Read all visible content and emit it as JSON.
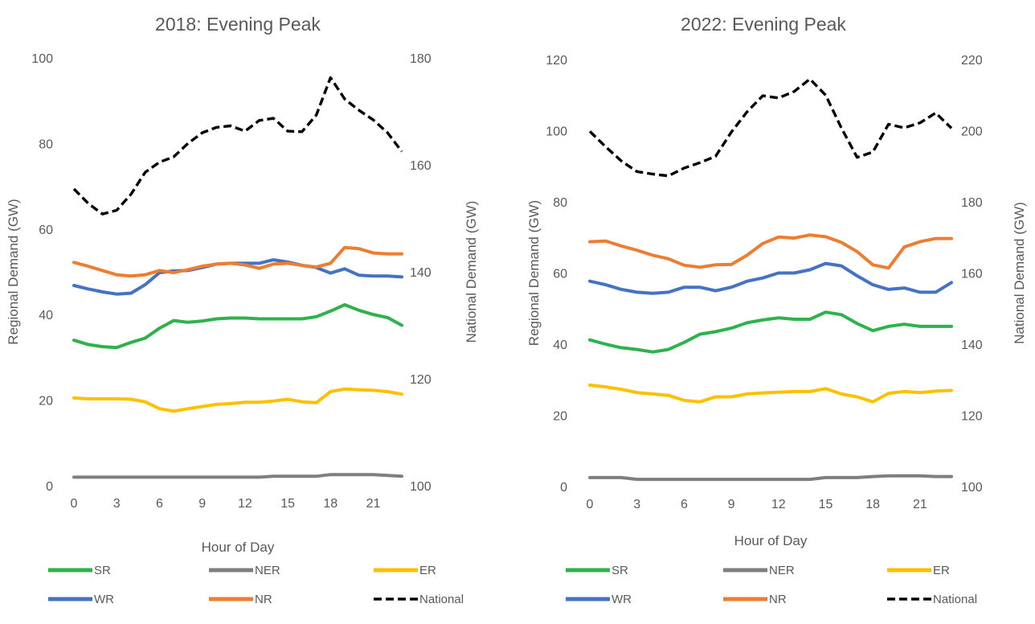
{
  "chart_data": [
    {
      "type": "line",
      "title": "2018: Evening  Peak",
      "xlabel": "Hour of Day",
      "ylabel": "Regional Demand (GW)",
      "y2label": "National Demand (GW)",
      "x": [
        0,
        1,
        2,
        3,
        4,
        5,
        6,
        7,
        8,
        9,
        10,
        11,
        12,
        13,
        14,
        15,
        16,
        17,
        18,
        19,
        20,
        21,
        22,
        23
      ],
      "xticks": [
        "0",
        "3",
        "6",
        "9",
        "12",
        "15",
        "18",
        "21"
      ],
      "ylim": [
        0,
        100
      ],
      "yticks": [
        "0",
        "20",
        "40",
        "60",
        "80",
        "100"
      ],
      "y2lim": [
        100,
        180
      ],
      "y2ticks": [
        "100",
        "120",
        "140",
        "160",
        "180"
      ],
      "legend_position": "bottom",
      "series": [
        {
          "name": "SR",
          "axis": "left",
          "color": "#2EB24B",
          "dashed": false,
          "values": [
            34,
            33,
            32.5,
            32.3,
            33.5,
            34.5,
            36.8,
            38.6,
            38.2,
            38.5,
            39,
            39.2,
            39.2,
            39,
            39,
            39,
            39,
            39.5,
            40.8,
            42.3,
            41,
            40,
            39.3,
            37.5
          ]
        },
        {
          "name": "NER",
          "axis": "left",
          "color": "#7F7F7F",
          "dashed": false,
          "values": [
            2,
            2,
            2,
            2,
            2,
            2,
            2,
            2,
            2,
            2,
            2,
            2,
            2,
            2,
            2.2,
            2.2,
            2.2,
            2.2,
            2.6,
            2.6,
            2.6,
            2.6,
            2.4,
            2.2
          ]
        },
        {
          "name": "ER",
          "axis": "left",
          "color": "#FFC000",
          "dashed": false,
          "values": [
            20.5,
            20.3,
            20.3,
            20.3,
            20.2,
            19.6,
            18,
            17.4,
            18,
            18.5,
            19,
            19.2,
            19.5,
            19.5,
            19.8,
            20.2,
            19.6,
            19.4,
            22,
            22.6,
            22.4,
            22.3,
            22,
            21.4
          ]
        },
        {
          "name": "WR",
          "axis": "left",
          "color": "#4472C4",
          "dashed": false,
          "values": [
            46.8,
            46,
            45.3,
            44.8,
            45,
            47,
            49.8,
            50.2,
            50.3,
            51,
            51.8,
            52,
            52,
            52,
            52.8,
            52.3,
            51.5,
            51,
            49.7,
            50.7,
            49.2,
            49,
            49,
            48.8
          ]
        },
        {
          "name": "NR",
          "axis": "left",
          "color": "#ED7D31",
          "dashed": false,
          "values": [
            52.2,
            51.3,
            50.3,
            49.3,
            49,
            49.3,
            50.3,
            49.8,
            50.5,
            51.3,
            51.8,
            52,
            51.6,
            50.8,
            51.8,
            52,
            51.5,
            51.1,
            52,
            55.7,
            55.4,
            54.4,
            54.2,
            54.2
          ]
        },
        {
          "name": "National",
          "axis": "right",
          "color": "#000000",
          "dashed": true,
          "values": [
            155.5,
            152.8,
            150.8,
            151.5,
            154.5,
            158.6,
            160.5,
            161.5,
            164,
            166,
            167,
            167.3,
            166.3,
            168.3,
            168.7,
            166.3,
            166.2,
            169.3,
            176.3,
            172.3,
            170.2,
            168.4,
            166,
            162.5
          ]
        }
      ]
    },
    {
      "type": "line",
      "title": "2022: Evening  Peak",
      "xlabel": "Hour of Day",
      "ylabel": "Regional Demand (GW)",
      "y2label": "National Demand (GW)",
      "x": [
        0,
        1,
        2,
        3,
        4,
        5,
        6,
        7,
        8,
        9,
        10,
        11,
        12,
        13,
        14,
        15,
        16,
        17,
        18,
        19,
        20,
        21,
        22,
        23
      ],
      "xticks": [
        "0",
        "3",
        "6",
        "9",
        "12",
        "15",
        "18",
        "21"
      ],
      "ylim": [
        0,
        120
      ],
      "yticks": [
        "0",
        "20",
        "40",
        "60",
        "80",
        "100",
        "120"
      ],
      "y2lim": [
        100,
        220
      ],
      "y2ticks": [
        "100",
        "120",
        "140",
        "160",
        "180",
        "200",
        "220"
      ],
      "legend_position": "bottom",
      "series": [
        {
          "name": "SR",
          "axis": "left",
          "color": "#2EB24B",
          "dashed": false,
          "values": [
            41.2,
            40,
            39,
            38.5,
            37.8,
            38.5,
            40.5,
            42.8,
            43.5,
            44.5,
            46,
            46.8,
            47.4,
            47,
            47,
            49,
            48.3,
            45.8,
            43.8,
            45,
            45.6,
            45,
            45,
            45
          ]
        },
        {
          "name": "NER",
          "axis": "left",
          "color": "#7F7F7F",
          "dashed": false,
          "values": [
            2.5,
            2.5,
            2.5,
            2,
            2,
            2,
            2,
            2,
            2,
            2,
            2,
            2,
            2,
            2,
            2,
            2.5,
            2.5,
            2.5,
            2.8,
            3,
            3,
            3,
            2.8,
            2.8
          ]
        },
        {
          "name": "ER",
          "axis": "left",
          "color": "#FFC000",
          "dashed": false,
          "values": [
            28.5,
            28,
            27.3,
            26.4,
            26,
            25.6,
            24.2,
            23.8,
            25.2,
            25.2,
            26,
            26.3,
            26.5,
            26.7,
            26.7,
            27.5,
            26,
            25.2,
            23.8,
            26.2,
            26.7,
            26.4,
            26.8,
            27
          ]
        },
        {
          "name": "WR",
          "axis": "left",
          "color": "#4472C4",
          "dashed": false,
          "values": [
            57.7,
            56.7,
            55.4,
            54.6,
            54.3,
            54.6,
            56,
            56,
            55,
            56,
            57.7,
            58.6,
            60,
            60,
            60.9,
            62.7,
            62,
            59.2,
            56.7,
            55.4,
            55.8,
            54.6,
            54.6,
            57.3
          ]
        },
        {
          "name": "NR",
          "axis": "left",
          "color": "#ED7D31",
          "dashed": false,
          "values": [
            68.8,
            69,
            67.6,
            66.4,
            65,
            64,
            62.2,
            61.6,
            62.3,
            62.4,
            65,
            68.3,
            70.1,
            69.8,
            70.7,
            70.2,
            68.6,
            66,
            62.3,
            61.4,
            67.3,
            68.8,
            69.7,
            69.7
          ]
        },
        {
          "name": "National",
          "axis": "right",
          "color": "#000000",
          "dashed": true,
          "values": [
            199.8,
            195.5,
            191.5,
            188.5,
            187.8,
            187.3,
            189.5,
            191,
            192.8,
            199.6,
            205.3,
            209.8,
            209.2,
            211,
            214.5,
            210,
            200.8,
            192.5,
            194,
            201.8,
            200.8,
            202.2,
            205,
            200.7
          ]
        }
      ]
    }
  ]
}
